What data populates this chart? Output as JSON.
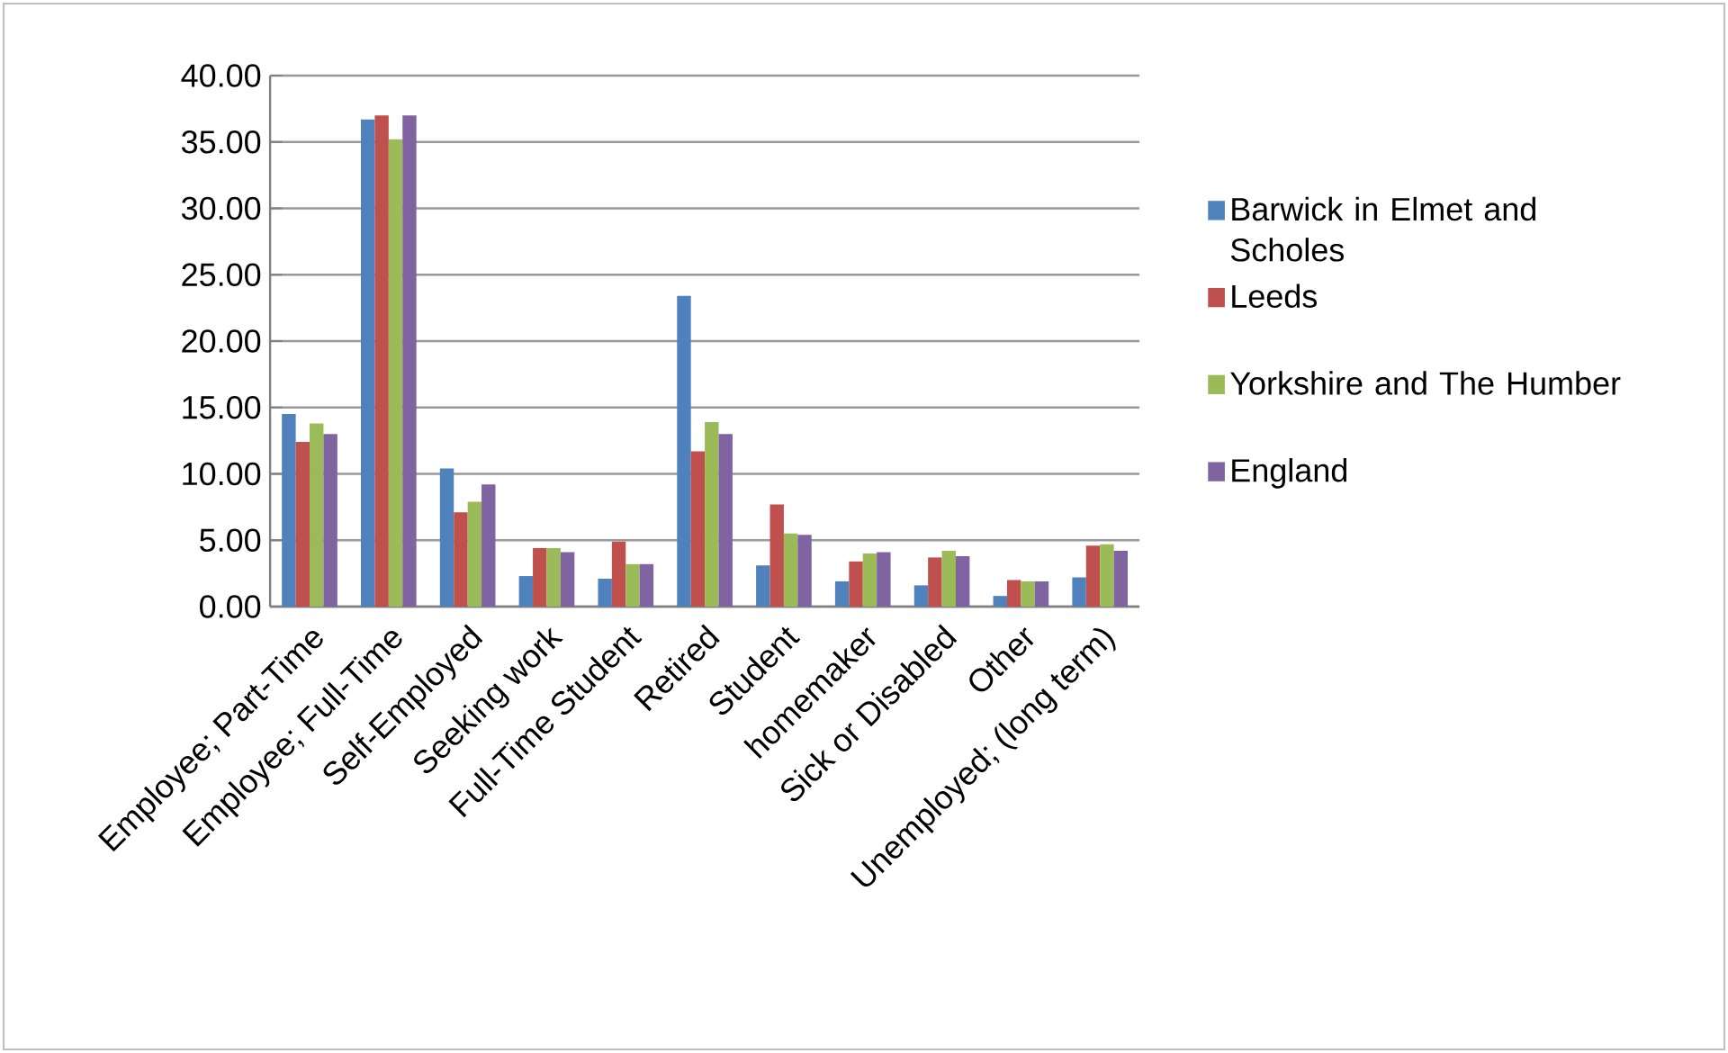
{
  "chart_data": {
    "type": "bar",
    "categories": [
      "Employee; Part-Time",
      "Employee; Full-Time",
      "Self-Employed",
      "Seeking work",
      "Full-Time Student",
      "Retired",
      "Student",
      "homemaker",
      "Sick or Disabled",
      "Other",
      "Unemployed; (long term)"
    ],
    "series": [
      {
        "name": "Barwick in Elmet and Scholes",
        "color": "#4f81bd",
        "values": [
          14.5,
          36.7,
          10.4,
          2.3,
          2.1,
          23.4,
          3.1,
          1.9,
          1.6,
          0.8,
          2.2
        ]
      },
      {
        "name": "Leeds",
        "color": "#c0504d",
        "values": [
          12.4,
          37.0,
          7.1,
          4.4,
          4.9,
          11.7,
          7.7,
          3.4,
          3.7,
          2.0,
          4.6
        ]
      },
      {
        "name": "Yorkshire and The Humber",
        "color": "#9bbb59",
        "values": [
          13.8,
          35.2,
          7.9,
          4.4,
          3.2,
          13.9,
          5.5,
          4.0,
          4.2,
          1.9,
          4.7
        ]
      },
      {
        "name": "England",
        "color": "#8064a2",
        "values": [
          13.0,
          37.0,
          9.2,
          4.1,
          3.2,
          13.0,
          5.4,
          4.1,
          3.8,
          1.9,
          4.2
        ]
      }
    ],
    "ylim": [
      0,
      40
    ],
    "yticks": [
      {
        "value": 0,
        "label": "0.00"
      },
      {
        "value": 5,
        "label": "5.00"
      },
      {
        "value": 10,
        "label": "10.00"
      },
      {
        "value": 15,
        "label": "15.00"
      },
      {
        "value": 20,
        "label": "20.00"
      },
      {
        "value": 25,
        "label": "25.00"
      },
      {
        "value": 30,
        "label": "30.00"
      },
      {
        "value": 35,
        "label": "35.00"
      },
      {
        "value": 40,
        "label": "40.00"
      }
    ],
    "grid": "y",
    "legend": "right"
  }
}
